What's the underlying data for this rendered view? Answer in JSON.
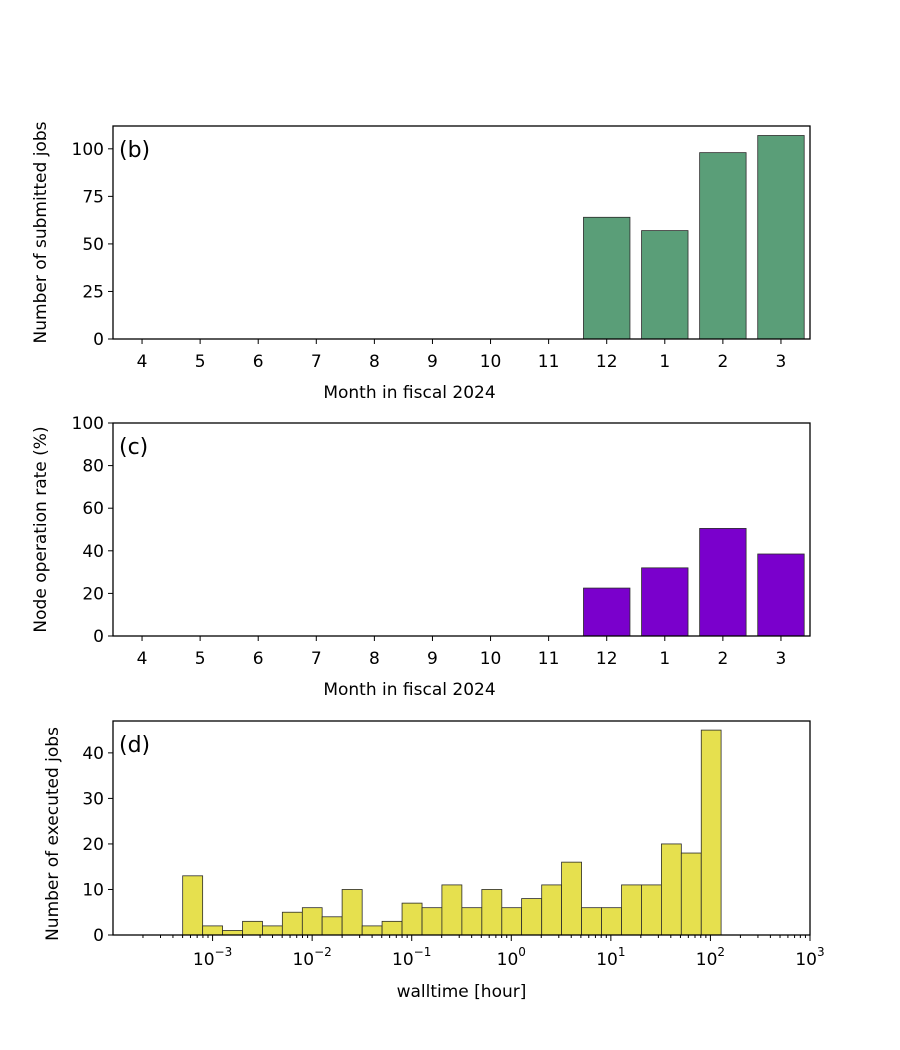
{
  "chart_data": [
    {
      "type": "bar",
      "panel_label": "(b)",
      "xlabel": "Month in fiscal 2024",
      "ylabel": "Number of submitted jobs",
      "categories": [
        "4",
        "5",
        "6",
        "7",
        "8",
        "9",
        "10",
        "11",
        "12",
        "1",
        "2",
        "3"
      ],
      "values": [
        0,
        0,
        0,
        0,
        0,
        0,
        0,
        0,
        64,
        57,
        98,
        107
      ],
      "ylim": [
        0,
        112
      ],
      "yticks": [
        0,
        25,
        50,
        75,
        100
      ],
      "color": "#5a9e78",
      "grid": false
    },
    {
      "type": "bar",
      "panel_label": "(c)",
      "xlabel": "Month in fiscal 2024",
      "ylabel": "Node operation rate (%)",
      "categories": [
        "4",
        "5",
        "6",
        "7",
        "8",
        "9",
        "10",
        "11",
        "12",
        "1",
        "2",
        "3"
      ],
      "values": [
        0,
        0,
        0,
        0,
        0,
        0,
        0,
        0,
        22.5,
        32,
        50.5,
        38.5
      ],
      "ylim": [
        0,
        100
      ],
      "yticks": [
        0,
        20,
        40,
        60,
        80,
        100
      ],
      "color": "#7a00cc",
      "grid": false
    },
    {
      "type": "histogram",
      "panel_label": "(d)",
      "xlabel": "walltime [hour]",
      "ylabel": "Number of executed jobs",
      "xscale": "log",
      "xlim": [
        0.0001,
        1000
      ],
      "ylim": [
        0,
        47
      ],
      "yticks": [
        0,
        10,
        20,
        30,
        40
      ],
      "xticks": [
        {
          "base": "10",
          "exp": "−3",
          "value": 0.001
        },
        {
          "base": "10",
          "exp": "−2",
          "value": 0.01
        },
        {
          "base": "10",
          "exp": "−1",
          "value": 0.1
        },
        {
          "base": "10",
          "exp": "0",
          "value": 1
        },
        {
          "base": "10",
          "exp": "1",
          "value": 10
        },
        {
          "base": "10",
          "exp": "2",
          "value": 100
        },
        {
          "base": "10",
          "exp": "3",
          "value": 1000
        }
      ],
      "bins": [
        {
          "x0": 0.000501,
          "x1": 0.000795,
          "count": 13
        },
        {
          "x0": 0.000795,
          "x1": 0.00126,
          "count": 2
        },
        {
          "x0": 0.00126,
          "x1": 0.002,
          "count": 1
        },
        {
          "x0": 0.002,
          "x1": 0.00317,
          "count": 3
        },
        {
          "x0": 0.00317,
          "x1": 0.00502,
          "count": 2
        },
        {
          "x0": 0.00502,
          "x1": 0.00797,
          "count": 5
        },
        {
          "x0": 0.00797,
          "x1": 0.0126,
          "count": 6
        },
        {
          "x0": 0.0126,
          "x1": 0.02,
          "count": 4
        },
        {
          "x0": 0.02,
          "x1": 0.0318,
          "count": 10
        },
        {
          "x0": 0.0318,
          "x1": 0.0504,
          "count": 2
        },
        {
          "x0": 0.0504,
          "x1": 0.08,
          "count": 3
        },
        {
          "x0": 0.08,
          "x1": 0.127,
          "count": 7
        },
        {
          "x0": 0.127,
          "x1": 0.201,
          "count": 6
        },
        {
          "x0": 0.201,
          "x1": 0.319,
          "count": 11
        },
        {
          "x0": 0.319,
          "x1": 0.506,
          "count": 6
        },
        {
          "x0": 0.506,
          "x1": 0.803,
          "count": 10
        },
        {
          "x0": 0.803,
          "x1": 1.27,
          "count": 6
        },
        {
          "x0": 1.27,
          "x1": 2.02,
          "count": 8
        },
        {
          "x0": 2.02,
          "x1": 3.2,
          "count": 11
        },
        {
          "x0": 3.2,
          "x1": 5.08,
          "count": 16
        },
        {
          "x0": 5.08,
          "x1": 8.06,
          "count": 6
        },
        {
          "x0": 8.06,
          "x1": 12.8,
          "count": 6
        },
        {
          "x0": 12.8,
          "x1": 20.3,
          "count": 11
        },
        {
          "x0": 20.3,
          "x1": 32.2,
          "count": 11
        },
        {
          "x0": 32.2,
          "x1": 51,
          "count": 20
        },
        {
          "x0": 51,
          "x1": 80.9,
          "count": 18
        },
        {
          "x0": 80.9,
          "x1": 128,
          "count": 45
        }
      ],
      "color": "#e6e04e",
      "grid": false
    }
  ]
}
